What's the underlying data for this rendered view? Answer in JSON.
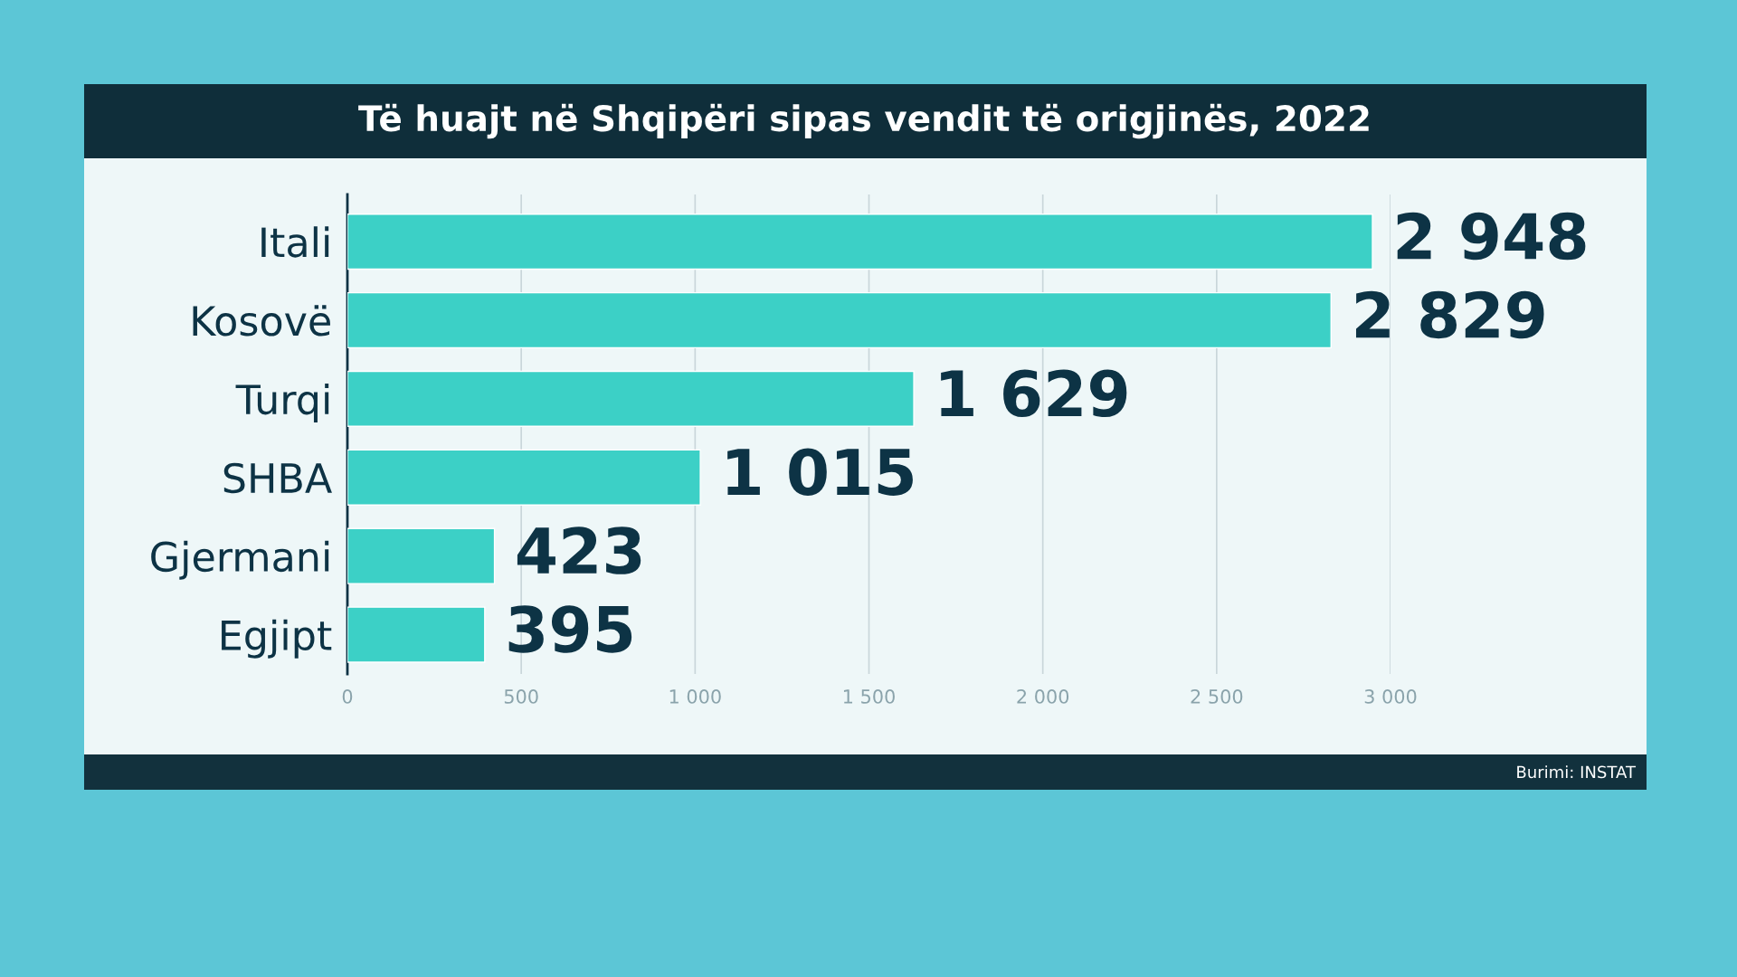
{
  "chart_data": {
    "type": "bar",
    "orientation": "horizontal",
    "title": "Të huajt në Shqipëri sipas vendit të origjinës, 2022",
    "categories": [
      "Itali",
      "Kosovë",
      "Turqi",
      "SHBA",
      "Gjermani",
      "Egjipt"
    ],
    "values": [
      2948,
      2829,
      1629,
      1015,
      423,
      395
    ],
    "value_labels": [
      "2 948",
      "2 829",
      "1 629",
      "1 015",
      "423",
      "395"
    ],
    "color": "#3cd0c6",
    "xlim": [
      0,
      3000
    ],
    "xticks": [
      0,
      500,
      {
        "value": 1000,
        "label": "1 000"
      },
      {
        "value": 1500,
        "label": "1 500"
      },
      {
        "value": 2000,
        "label": "2 000"
      },
      {
        "value": 2500,
        "label": "2 500"
      },
      {
        "value": 3000,
        "label": "3 000"
      }
    ],
    "grid": "x",
    "annotations": [
      "Burimi: INSTAT"
    ]
  }
}
